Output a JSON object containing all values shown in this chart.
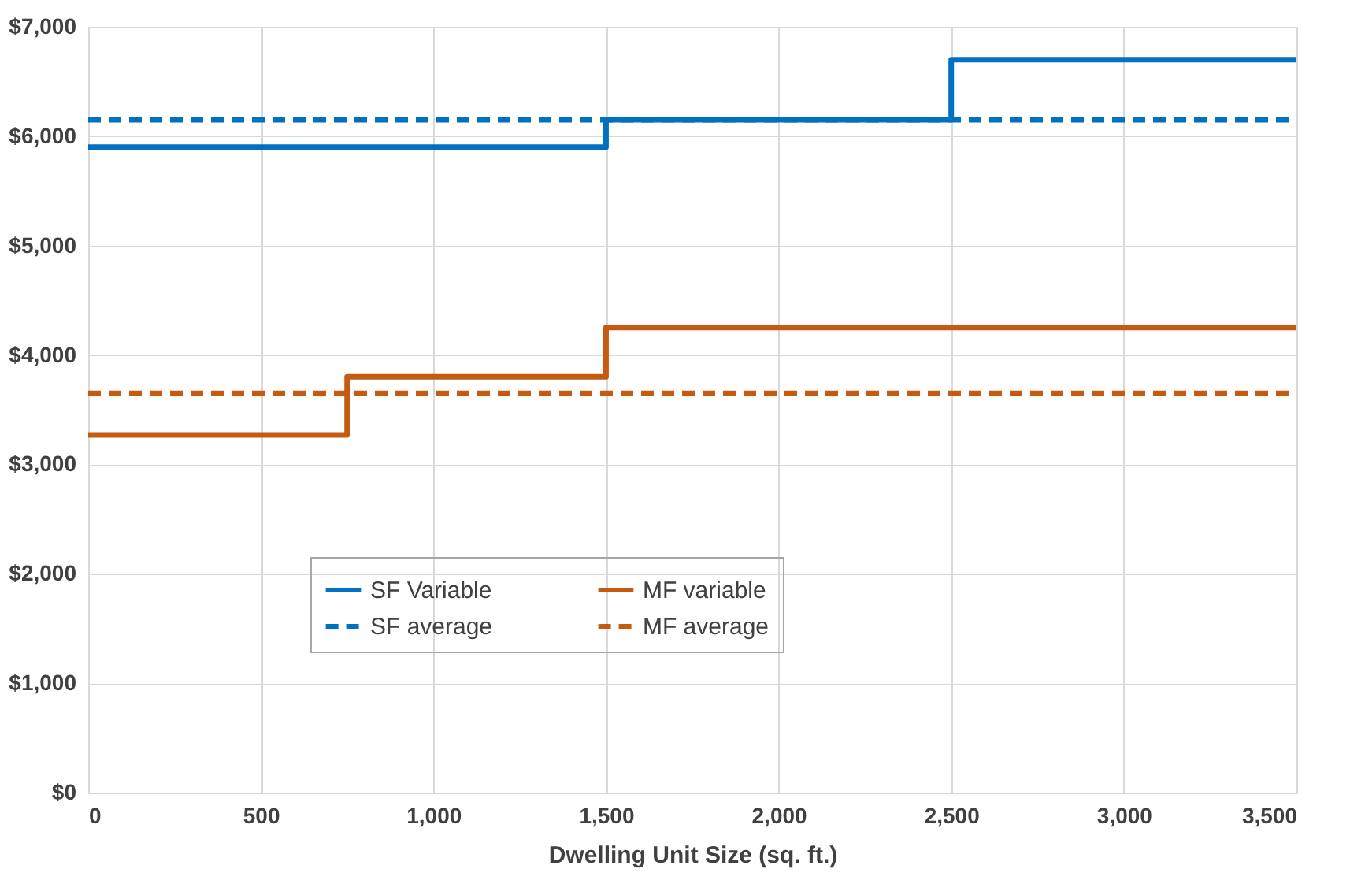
{
  "chart_data": {
    "type": "step",
    "xlabel": "Dwelling Unit Size (sq. ft.)",
    "xlim": [
      0,
      3500
    ],
    "xticks": [
      0,
      500,
      {
        "value": 1000,
        "label": "1,000"
      },
      {
        "value": 1500,
        "label": "1,500"
      },
      {
        "value": 2000,
        "label": "2,000"
      },
      {
        "value": 2500,
        "label": "2,500"
      },
      {
        "value": 3000,
        "label": "3,000"
      },
      {
        "value": 3500,
        "label": "3,500"
      }
    ],
    "ylim": [
      0,
      7000
    ],
    "yticks": [
      {
        "value": 0,
        "label": "$0"
      },
      {
        "value": 1000,
        "label": "$1,000"
      },
      {
        "value": 2000,
        "label": "$2,000"
      },
      {
        "value": 3000,
        "label": "$3,000"
      },
      {
        "value": 4000,
        "label": "$4,000"
      },
      {
        "value": 5000,
        "label": "$5,000"
      },
      {
        "value": 6000,
        "label": "$6,000"
      },
      {
        "value": 7000,
        "label": "$7,000"
      }
    ],
    "grid": true,
    "legend": "center",
    "series": [
      {
        "name": "SF Variable",
        "color": "#0070c0",
        "line_style": "solid",
        "x": [
          0,
          1500,
          2500,
          3500
        ],
        "values": [
          5900,
          6150,
          6700,
          6700
        ]
      },
      {
        "name": "MF variable",
        "color": "#c55a11",
        "line_style": "solid",
        "x": [
          0,
          750,
          1500,
          3500
        ],
        "values": [
          3270,
          3800,
          4250,
          4250
        ]
      },
      {
        "name": "SF average",
        "type": "line",
        "color": "#0070c0",
        "line_style": "dashed",
        "x": [
          0,
          3500
        ],
        "values": [
          6150,
          6150
        ]
      },
      {
        "name": "MF average",
        "type": "line",
        "color": "#c55a11",
        "line_style": "dashed",
        "x": [
          0,
          3500
        ],
        "values": [
          3650,
          3650
        ]
      }
    ]
  }
}
